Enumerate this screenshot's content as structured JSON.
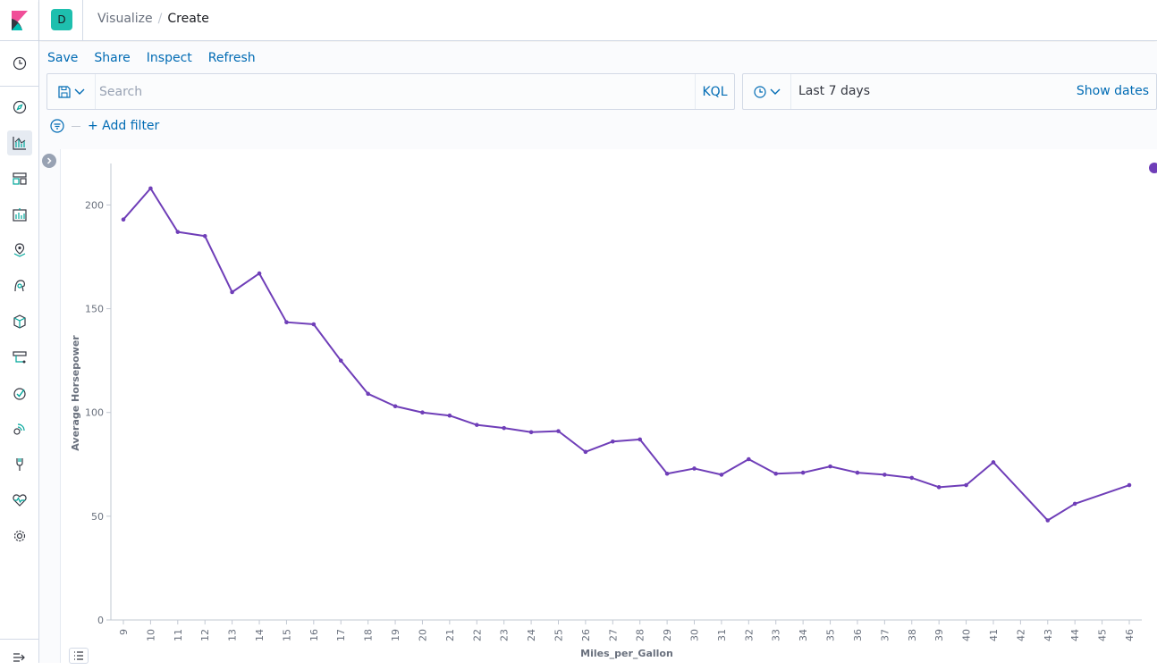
{
  "breadcrumbs": {
    "parent": "Visualize",
    "separator": "/",
    "current": "Create"
  },
  "space": {
    "initial": "D",
    "color": "#1ebfae"
  },
  "menu": {
    "save": "Save",
    "share": "Share",
    "inspect": "Inspect",
    "refresh": "Refresh"
  },
  "query": {
    "placeholder": "Search",
    "language": "KQL"
  },
  "date": {
    "range": "Last 7 days",
    "show_dates": "Show dates"
  },
  "filters": {
    "add_label": "+ Add filter"
  },
  "colors": {
    "link": "#006bb4",
    "series": "#6f3eb8"
  },
  "nav_icons": [
    "clock-icon",
    "discover-icon",
    "visualize-icon",
    "dashboard-icon",
    "canvas-icon",
    "maps-icon",
    "ml-icon",
    "infra-icon",
    "logs-icon",
    "apm-icon",
    "uptime-icon",
    "siem-icon",
    "dev-tools-icon",
    "monitoring-icon",
    "management-icon",
    "collapse-nav-icon"
  ],
  "chart_data": {
    "type": "line",
    "xlabel": "Miles_per_Gallon",
    "ylabel": "Average Horsepower",
    "ylim": [
      0,
      220
    ],
    "yticks": [
      0,
      50,
      100,
      150,
      200
    ],
    "x": [
      "9",
      "10",
      "11",
      "12",
      "13",
      "14",
      "15",
      "16",
      "17",
      "18",
      "19",
      "20",
      "21",
      "22",
      "23",
      "24",
      "25",
      "26",
      "27",
      "28",
      "29",
      "30",
      "31",
      "32",
      "33",
      "34",
      "35",
      "36",
      "37",
      "38",
      "39",
      "40",
      "41",
      "42",
      "43",
      "44",
      "45",
      "46"
    ],
    "series": [
      {
        "color": "#6f3eb8",
        "values": [
          193,
          208,
          187,
          185,
          158,
          167,
          143.5,
          142.5,
          125,
          109,
          103,
          100,
          98.5,
          94,
          92.5,
          90.5,
          91,
          81,
          86,
          87,
          70.5,
          73,
          70,
          77.5,
          70.5,
          71,
          74,
          71,
          70,
          68.5,
          64,
          65,
          76,
          null,
          48,
          56,
          null,
          65
        ]
      }
    ],
    "grid": false,
    "legend": "top-right"
  }
}
